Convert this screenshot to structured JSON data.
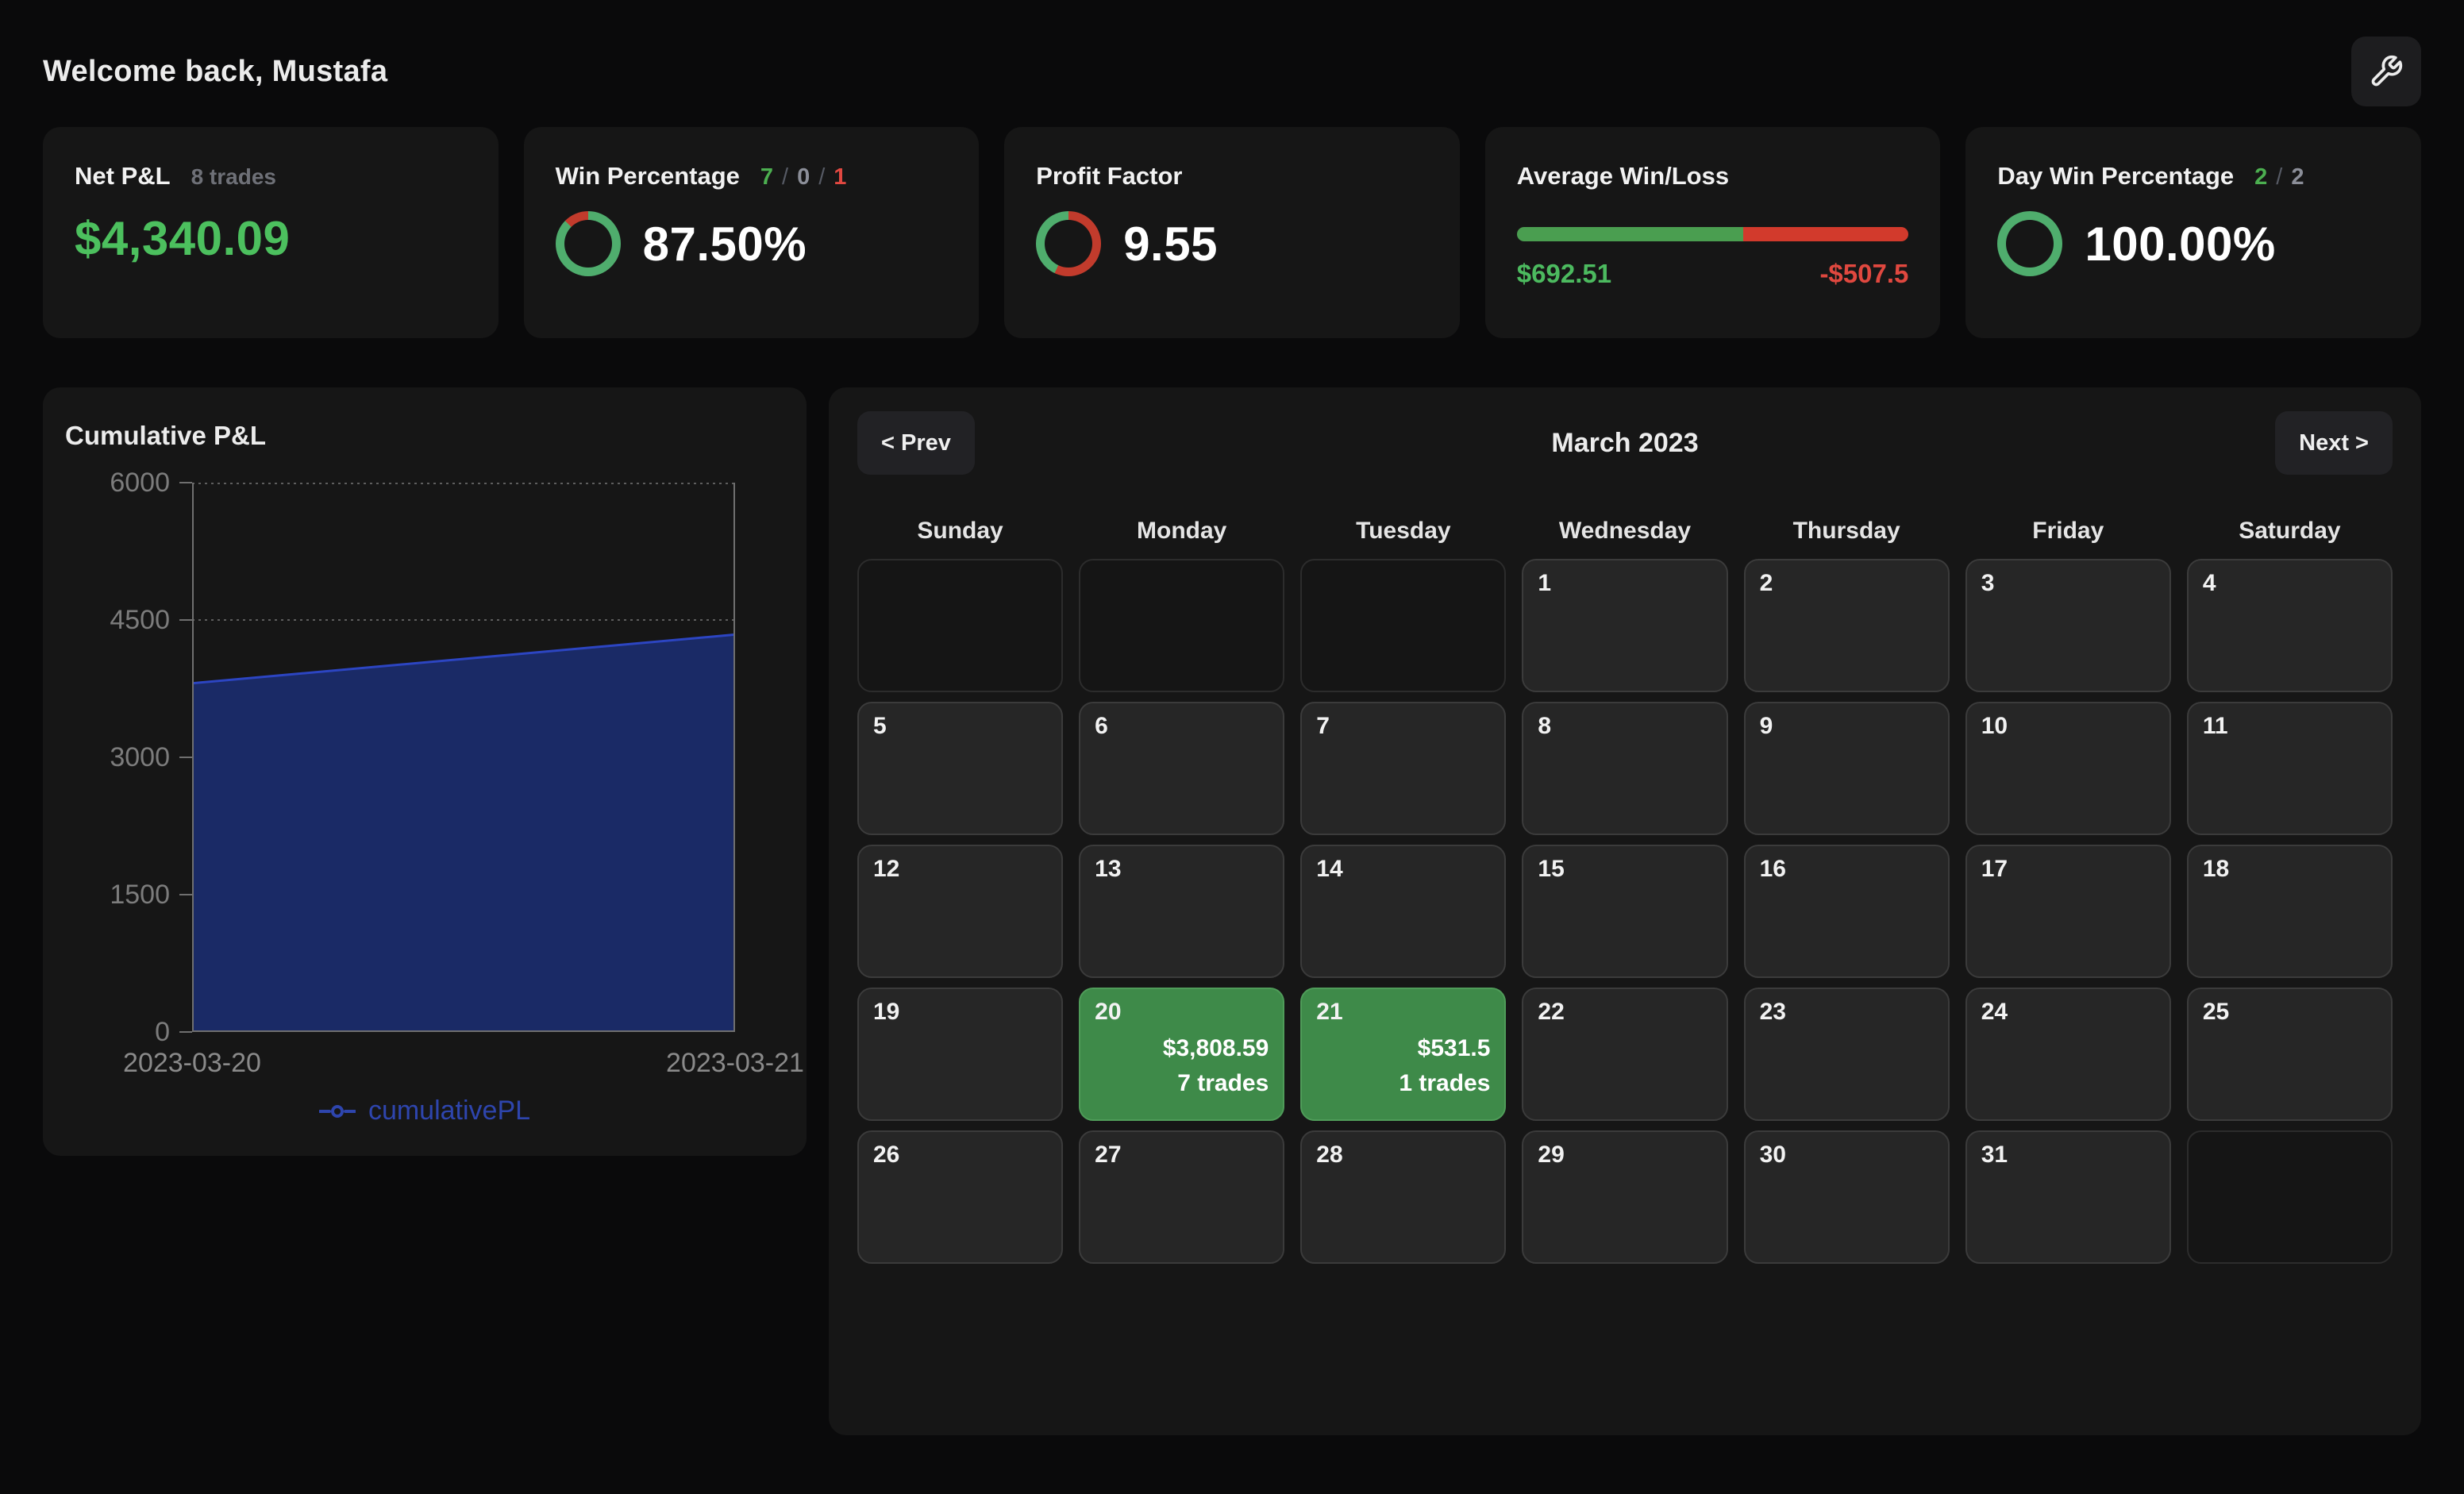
{
  "colors": {
    "accent_green": "#4cc05e",
    "accent_red": "#e0483f",
    "donut_green": "#4fad6d",
    "donut_red": "#c23b2c",
    "bar_green": "#4a9e50",
    "bar_red": "#d23a2c",
    "area_fill": "#1a2a66",
    "area_line": "#2c45c2",
    "legend_blue": "#2e45ad",
    "day_win_green": "#3e8a49"
  },
  "header": {
    "welcome": "Welcome back, Mustafa"
  },
  "stats": {
    "net_pl": {
      "title": "Net P&L",
      "subtitle": "8 trades",
      "value": "$4,340.09"
    },
    "win_percentage": {
      "title": "Win Percentage",
      "wins": "7",
      "breakeven": "0",
      "losses": "1",
      "sep": "/",
      "value": "87.50%"
    },
    "profit_factor": {
      "title": "Profit Factor",
      "value": "9.55"
    },
    "average_win_loss": {
      "title": "Average Win/Loss",
      "win": "$692.51",
      "loss": "-$507.5",
      "win_pct": 57.7
    },
    "day_win_percentage": {
      "title": "Day Win Percentage",
      "wins": "2",
      "total": "2",
      "sep": "/",
      "value": "100.00%"
    }
  },
  "chart_data": {
    "type": "area",
    "title": "Cumulative P&L",
    "legend": "cumulativePL",
    "legend_position": "bottom",
    "x": [
      "2023-03-20",
      "2023-03-21"
    ],
    "values": [
      3808.59,
      4340.09
    ],
    "y_ticks": [
      "6000",
      "4500",
      "3000",
      "1500",
      "0"
    ],
    "ylim": [
      0,
      6000
    ],
    "grid": true
  },
  "calendar": {
    "prev": "< Prev",
    "next": "Next >",
    "month": "March 2023",
    "weekdays": [
      "Sunday",
      "Monday",
      "Tuesday",
      "Wednesday",
      "Thursday",
      "Friday",
      "Saturday"
    ],
    "cells": [
      {
        "day": ""
      },
      {
        "day": ""
      },
      {
        "day": ""
      },
      {
        "day": "1"
      },
      {
        "day": "2"
      },
      {
        "day": "3"
      },
      {
        "day": "4"
      },
      {
        "day": "5"
      },
      {
        "day": "6"
      },
      {
        "day": "7"
      },
      {
        "day": "8"
      },
      {
        "day": "9"
      },
      {
        "day": "10"
      },
      {
        "day": "11"
      },
      {
        "day": "12"
      },
      {
        "day": "13"
      },
      {
        "day": "14"
      },
      {
        "day": "15"
      },
      {
        "day": "16"
      },
      {
        "day": "17"
      },
      {
        "day": "18"
      },
      {
        "day": "19"
      },
      {
        "day": "20",
        "pnl": "$3,808.59",
        "trades": "7 trades"
      },
      {
        "day": "21",
        "pnl": "$531.5",
        "trades": "1 trades"
      },
      {
        "day": "22"
      },
      {
        "day": "23"
      },
      {
        "day": "24"
      },
      {
        "day": "25"
      },
      {
        "day": "26"
      },
      {
        "day": "27"
      },
      {
        "day": "28"
      },
      {
        "day": "29"
      },
      {
        "day": "30"
      },
      {
        "day": "31"
      },
      {
        "day": ""
      }
    ]
  }
}
